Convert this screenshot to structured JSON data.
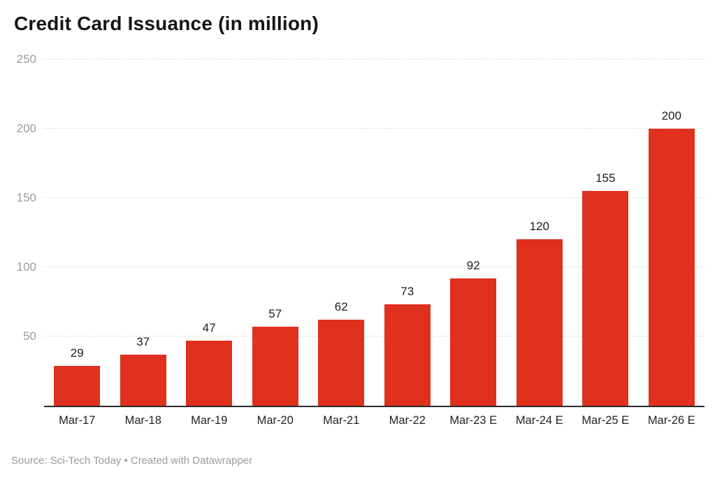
{
  "title": "Credit Card Issuance (in million)",
  "footer": {
    "source": "Source: Sci-Tech Today • Created with Datawrapper"
  },
  "chart_data": {
    "type": "bar",
    "title": "Credit Card Issuance (in million)",
    "categories": [
      "Mar-17",
      "Mar-18",
      "Mar-19",
      "Mar-20",
      "Mar-21",
      "Mar-22",
      "Mar-23 E",
      "Mar-24 E",
      "Mar-25 E",
      "Mar-26 E"
    ],
    "values": [
      29,
      37,
      47,
      57,
      62,
      73,
      92,
      120,
      155,
      200
    ],
    "value_labels_shown": true,
    "xlabel": "",
    "ylabel": "",
    "ylim": [
      0,
      250
    ],
    "yticks": [
      50,
      100,
      150,
      200,
      250
    ],
    "grid": "horizontal-dashed",
    "legend": "none",
    "colors": {
      "bar": "#e0301e",
      "gridline": "#dddddd",
      "baseline": "#2b2b2b",
      "y_tick_text": "#9c9c9c",
      "value_label_text": "#1d1d1d",
      "category_label_text": "#222222",
      "title_text": "#151515",
      "footer_text": "#9b9b9b",
      "background": "#ffffff"
    }
  }
}
